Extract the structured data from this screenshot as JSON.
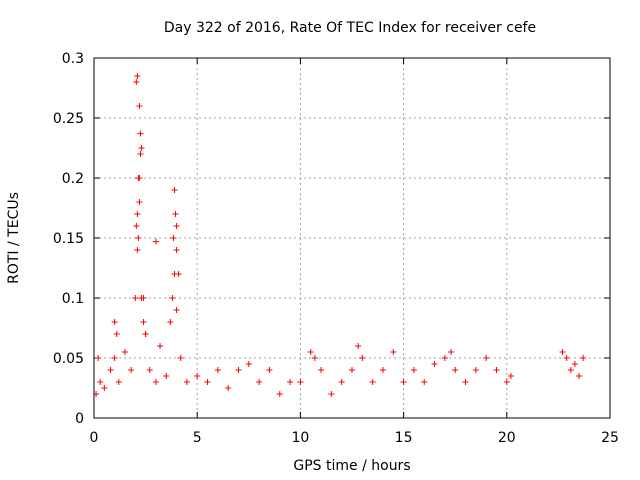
{
  "chart_data": {
    "type": "scatter",
    "title": "Day 322 of 2016, Rate Of TEC Index for receiver cefe",
    "xlabel": "GPS time / hours",
    "ylabel": "ROTI / TECUs",
    "xlim": [
      0,
      25
    ],
    "ylim": [
      0,
      0.3
    ],
    "x_ticks": [
      "0",
      "5",
      "10",
      "15",
      "20",
      "25"
    ],
    "y_ticks": [
      "0",
      "0.05",
      "0.1",
      "0.15",
      "0.2",
      "0.25",
      "0.3"
    ],
    "grid": true,
    "marker": "+",
    "color": "#ff0000",
    "series": [
      {
        "x": [
          0.1,
          0.3,
          0.5,
          0.8,
          1.0,
          1.2,
          1.5,
          1.8,
          2.0,
          2.1,
          2.15,
          2.2,
          2.25,
          2.3,
          2.4,
          2.5,
          2.7,
          3.0,
          3.2,
          3.5,
          3.7,
          3.8,
          3.9,
          4.0,
          4.2,
          4.5,
          5.0,
          5.5,
          6.0,
          6.5,
          7.0,
          7.5,
          8.0,
          8.5,
          9.0,
          9.5,
          10.0,
          10.5,
          10.7,
          11.0,
          11.5,
          12.0,
          12.5,
          12.8,
          13.0,
          13.5,
          14.0,
          14.5,
          15.0,
          15.5,
          16.0,
          16.5,
          17.0,
          17.3,
          17.5,
          18.0,
          18.5,
          19.0,
          19.5,
          20.0,
          20.2,
          22.7,
          22.9,
          23.1,
          23.3,
          23.5,
          23.7,
          2.05,
          2.1,
          2.2,
          2.25,
          2.3,
          2.15,
          2.2,
          2.1,
          2.05,
          3.0,
          3.9,
          3.95,
          4.0,
          3.85,
          4.0,
          4.1,
          1.0,
          1.1,
          0.2,
          2.5,
          2.4
        ],
        "y": [
          0.02,
          0.03,
          0.025,
          0.04,
          0.05,
          0.03,
          0.055,
          0.04,
          0.1,
          0.14,
          0.15,
          0.2,
          0.22,
          0.1,
          0.08,
          0.07,
          0.04,
          0.03,
          0.06,
          0.035,
          0.08,
          0.1,
          0.12,
          0.09,
          0.05,
          0.03,
          0.035,
          0.03,
          0.04,
          0.025,
          0.04,
          0.045,
          0.03,
          0.04,
          0.02,
          0.03,
          0.03,
          0.055,
          0.05,
          0.04,
          0.02,
          0.03,
          0.04,
          0.06,
          0.05,
          0.03,
          0.04,
          0.055,
          0.03,
          0.04,
          0.03,
          0.045,
          0.05,
          0.055,
          0.04,
          0.03,
          0.04,
          0.05,
          0.04,
          0.03,
          0.035,
          0.055,
          0.05,
          0.04,
          0.045,
          0.035,
          0.05,
          0.28,
          0.285,
          0.26,
          0.237,
          0.225,
          0.2,
          0.18,
          0.17,
          0.16,
          0.147,
          0.19,
          0.17,
          0.16,
          0.15,
          0.14,
          0.12,
          0.08,
          0.07,
          0.05,
          0.07,
          0.1
        ]
      }
    ]
  }
}
